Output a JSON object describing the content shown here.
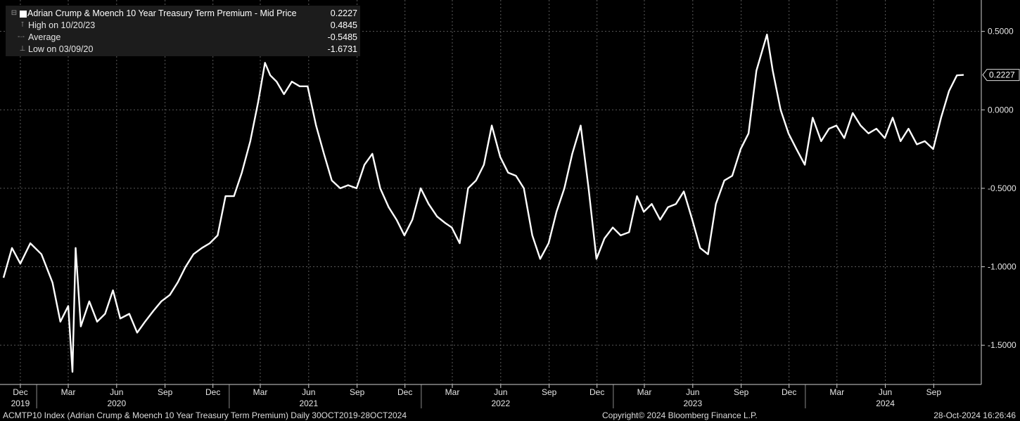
{
  "legend": {
    "title": "Adrian Crump & Moench 10 Year Treasury Term Premium - Mid Price",
    "last_value": "0.2227",
    "high_label": "High on 10/20/23",
    "high_value": "0.4845",
    "average_label": "Average",
    "average_value": "-0.5485",
    "low_label": "Low on 03/09/20",
    "low_value": "-1.6731"
  },
  "footer": {
    "left": "ACMTP10 Index (Adrian Crump & Moench 10 Year Treasury Term Premium)  Daily 30OCT2019-28OCT2024",
    "center": "Copyright© 2024 Bloomberg Finance L.P.",
    "right": "28-Oct-2024 16:26:46"
  },
  "colors": {
    "background": "#000000",
    "line": "#ffffff",
    "grid": "#5a5a5a",
    "text": "#e6e6e6"
  },
  "chart_data": {
    "type": "line",
    "ylim": [
      -1.75,
      0.7
    ],
    "yticks": [
      "0.5000",
      "0.0000",
      "-0.5000",
      "-1.0000",
      "-1.5000"
    ],
    "ytick_values": [
      0.5,
      0,
      -0.5,
      -1.0,
      -1.5
    ],
    "last_value_label": "0.2227",
    "xlim": [
      "2019-10-30",
      "2024-10-28"
    ],
    "month_ticks": [
      {
        "date": "2019-12-01",
        "label": "Dec"
      },
      {
        "date": "2020-03-01",
        "label": "Mar"
      },
      {
        "date": "2020-06-01",
        "label": "Jun"
      },
      {
        "date": "2020-09-01",
        "label": "Sep"
      },
      {
        "date": "2020-12-01",
        "label": "Dec"
      },
      {
        "date": "2021-03-01",
        "label": "Mar"
      },
      {
        "date": "2021-06-01",
        "label": "Jun"
      },
      {
        "date": "2021-09-01",
        "label": "Sep"
      },
      {
        "date": "2021-12-01",
        "label": "Dec"
      },
      {
        "date": "2022-03-01",
        "label": "Mar"
      },
      {
        "date": "2022-06-01",
        "label": "Jun"
      },
      {
        "date": "2022-09-01",
        "label": "Sep"
      },
      {
        "date": "2022-12-01",
        "label": "Dec"
      },
      {
        "date": "2023-03-01",
        "label": "Mar"
      },
      {
        "date": "2023-06-01",
        "label": "Jun"
      },
      {
        "date": "2023-09-01",
        "label": "Sep"
      },
      {
        "date": "2023-12-01",
        "label": "Dec"
      },
      {
        "date": "2024-03-01",
        "label": "Mar"
      },
      {
        "date": "2024-06-01",
        "label": "Jun"
      },
      {
        "date": "2024-09-01",
        "label": "Sep"
      }
    ],
    "year_ticks": [
      {
        "date": "2019-12-01",
        "label": "2019"
      },
      {
        "date": "2020-06-01",
        "label": "2020"
      },
      {
        "date": "2021-06-01",
        "label": "2021"
      },
      {
        "date": "2022-06-01",
        "label": "2022"
      },
      {
        "date": "2023-06-01",
        "label": "2023"
      },
      {
        "date": "2024-06-01",
        "label": "2024"
      }
    ],
    "year_separators": [
      "2020-01-01",
      "2021-01-01",
      "2022-01-01",
      "2023-01-01",
      "2024-01-01"
    ],
    "series": [
      {
        "x": [
          "2019-10-30",
          "2019-11-15",
          "2019-12-01",
          "2019-12-20",
          "2020-01-10",
          "2020-01-31",
          "2020-02-15",
          "2020-03-01",
          "2020-03-09",
          "2020-03-15",
          "2020-03-25",
          "2020-04-10",
          "2020-04-25",
          "2020-05-10",
          "2020-05-25",
          "2020-06-08",
          "2020-06-25",
          "2020-07-10",
          "2020-07-25",
          "2020-08-10",
          "2020-08-25",
          "2020-09-10",
          "2020-09-25",
          "2020-10-10",
          "2020-10-25",
          "2020-11-10",
          "2020-11-25",
          "2020-12-10",
          "2020-12-25",
          "2021-01-10",
          "2021-01-25",
          "2021-02-10",
          "2021-02-25",
          "2021-03-10",
          "2021-03-20",
          "2021-04-01",
          "2021-04-15",
          "2021-04-30",
          "2021-05-15",
          "2021-05-30",
          "2021-06-15",
          "2021-06-30",
          "2021-07-15",
          "2021-07-31",
          "2021-08-15",
          "2021-08-31",
          "2021-09-15",
          "2021-09-30",
          "2021-10-15",
          "2021-10-31",
          "2021-11-15",
          "2021-11-30",
          "2021-12-15",
          "2021-12-31",
          "2022-01-15",
          "2022-01-31",
          "2022-02-15",
          "2022-02-28",
          "2022-03-15",
          "2022-03-31",
          "2022-04-15",
          "2022-04-30",
          "2022-05-15",
          "2022-05-31",
          "2022-06-15",
          "2022-06-30",
          "2022-07-15",
          "2022-07-31",
          "2022-08-15",
          "2022-08-31",
          "2022-09-15",
          "2022-09-30",
          "2022-10-15",
          "2022-10-31",
          "2022-11-15",
          "2022-11-30",
          "2022-12-15",
          "2022-12-31",
          "2023-01-15",
          "2023-01-31",
          "2023-02-15",
          "2023-02-28",
          "2023-03-15",
          "2023-03-31",
          "2023-04-15",
          "2023-04-30",
          "2023-05-15",
          "2023-05-31",
          "2023-06-15",
          "2023-06-30",
          "2023-07-15",
          "2023-07-31",
          "2023-08-15",
          "2023-08-31",
          "2023-09-15",
          "2023-09-30",
          "2023-10-20",
          "2023-10-31",
          "2023-11-15",
          "2023-11-30",
          "2023-12-15",
          "2023-12-31",
          "2024-01-15",
          "2024-01-31",
          "2024-02-15",
          "2024-02-29",
          "2024-03-15",
          "2024-03-31",
          "2024-04-15",
          "2024-04-30",
          "2024-05-15",
          "2024-05-31",
          "2024-06-15",
          "2024-06-30",
          "2024-07-15",
          "2024-07-31",
          "2024-08-15",
          "2024-08-31",
          "2024-09-15",
          "2024-09-30",
          "2024-10-15",
          "2024-10-28"
        ],
        "values": [
          -1.07,
          -0.88,
          -0.98,
          -0.85,
          -0.92,
          -1.1,
          -1.35,
          -1.25,
          -1.67,
          -0.88,
          -1.38,
          -1.22,
          -1.35,
          -1.3,
          -1.15,
          -1.33,
          -1.3,
          -1.42,
          -1.35,
          -1.28,
          -1.22,
          -1.18,
          -1.1,
          -1.0,
          -0.92,
          -0.88,
          -0.85,
          -0.8,
          -0.55,
          -0.55,
          -0.4,
          -0.2,
          0.05,
          0.3,
          0.22,
          0.18,
          0.1,
          0.18,
          0.15,
          0.15,
          -0.1,
          -0.28,
          -0.45,
          -0.5,
          -0.48,
          -0.5,
          -0.35,
          -0.28,
          -0.5,
          -0.62,
          -0.7,
          -0.8,
          -0.7,
          -0.5,
          -0.6,
          -0.68,
          -0.72,
          -0.75,
          -0.85,
          -0.5,
          -0.45,
          -0.35,
          -0.1,
          -0.3,
          -0.4,
          -0.42,
          -0.5,
          -0.8,
          -0.95,
          -0.85,
          -0.65,
          -0.5,
          -0.28,
          -0.1,
          -0.5,
          -0.95,
          -0.82,
          -0.75,
          -0.8,
          -0.78,
          -0.55,
          -0.65,
          -0.6,
          -0.7,
          -0.62,
          -0.6,
          -0.52,
          -0.7,
          -0.88,
          -0.92,
          -0.6,
          -0.45,
          -0.42,
          -0.25,
          -0.15,
          0.25,
          0.48,
          0.25,
          0.0,
          -0.15,
          -0.25,
          -0.35,
          -0.05,
          -0.2,
          -0.12,
          -0.1,
          -0.18,
          -0.02,
          -0.1,
          -0.15,
          -0.12,
          -0.18,
          -0.05,
          -0.2,
          -0.12,
          -0.22,
          -0.2,
          -0.25,
          -0.05,
          0.12,
          0.22,
          0.2227
        ]
      }
    ]
  }
}
